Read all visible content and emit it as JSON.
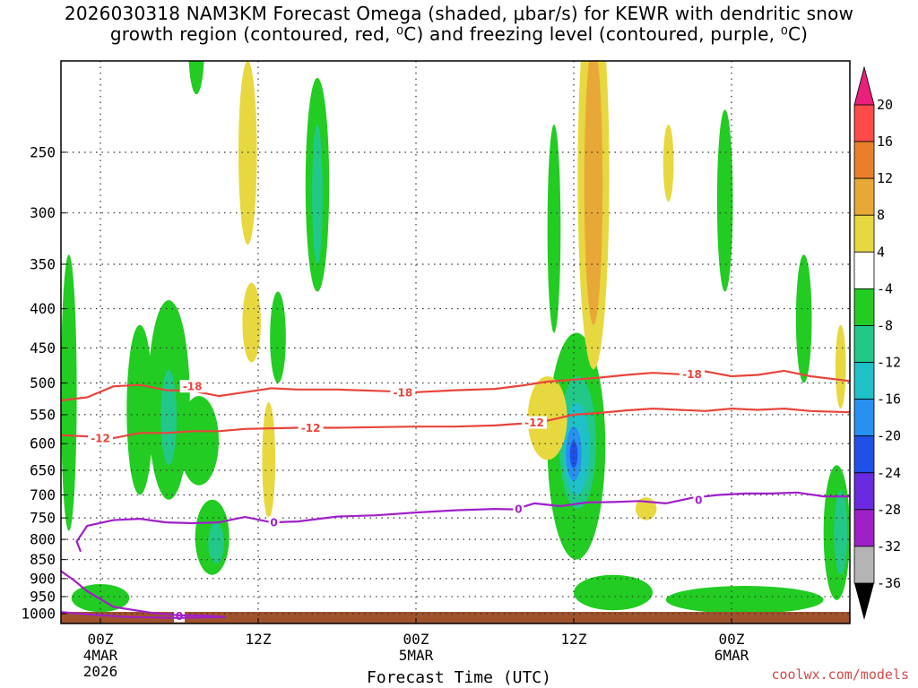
{
  "title": {
    "line1": "2026030318 NAM3KM Forecast Omega (shaded, μbar/s) for KEWR with dendritic snow",
    "line2": "growth region (contoured, red, ⁰C) and freezing level (contoured, purple, ⁰C)"
  },
  "credit": "coolwx.com/models",
  "chart_data": {
    "type": "heatmap",
    "title": "2026030318 NAM3KM Forecast Omega (shaded, μbar/s) for KEWR with dendritic snow growth region (contoured, red, ⁰C) and freezing level (contoured, purple, ⁰C)",
    "xlabel": "Forecast Time (UTC)",
    "ylabel": "",
    "x_unit": "forecast hour",
    "xlim": [
      3,
      63
    ],
    "ylim": [
      1030,
      190
    ],
    "y_axis": "pressure (hPa)",
    "y_ticks": [
      250,
      300,
      350,
      400,
      450,
      500,
      550,
      600,
      650,
      700,
      750,
      800,
      850,
      900,
      950,
      1000
    ],
    "x_ticks": [
      {
        "hour": 6,
        "label": "00Z",
        "sub1": "4MAR",
        "sub2": "2026"
      },
      {
        "hour": 18,
        "label": "12Z",
        "sub1": "",
        "sub2": ""
      },
      {
        "hour": 30,
        "label": "00Z",
        "sub1": "5MAR",
        "sub2": ""
      },
      {
        "hour": 42,
        "label": "12Z",
        "sub1": "",
        "sub2": ""
      },
      {
        "hour": 54,
        "label": "00Z",
        "sub1": "6MAR",
        "sub2": ""
      }
    ],
    "colorbar": {
      "levels": [
        20,
        16,
        12,
        8,
        4,
        -4,
        -8,
        -12,
        -16,
        -20,
        -24,
        -28,
        -32,
        -36
      ],
      "colors": [
        "#ff4a4a",
        "#e8802a",
        "#e8a838",
        "#e8d840",
        "#ffffff",
        "#22cc22",
        "#22c888",
        "#20c0c8",
        "#2890f0",
        "#2050e8",
        "#6a2ae0",
        "#a020c8",
        "#b4b4b4"
      ],
      "top_arrow_color": "#e8207a",
      "bottom_arrow_color": "#000000"
    },
    "contours": [
      {
        "name": "dendritic -18C",
        "label": "-18",
        "color": "#e8453c",
        "points": [
          [
            3,
            527
          ],
          [
            5,
            522
          ],
          [
            7,
            505
          ],
          [
            9,
            503
          ],
          [
            11,
            511
          ],
          [
            13,
            512
          ],
          [
            15,
            520
          ],
          [
            17,
            514
          ],
          [
            19,
            508
          ],
          [
            21,
            510
          ],
          [
            24,
            510
          ],
          [
            27,
            512
          ],
          [
            30,
            514
          ],
          [
            33,
            511
          ],
          [
            36,
            509
          ],
          [
            38,
            504
          ],
          [
            40,
            498
          ],
          [
            42,
            495
          ],
          [
            44,
            492
          ],
          [
            46,
            488
          ],
          [
            48,
            485
          ],
          [
            50,
            487
          ],
          [
            52,
            483
          ],
          [
            54,
            490
          ],
          [
            56,
            488
          ],
          [
            58,
            482
          ],
          [
            60,
            490
          ],
          [
            63,
            497
          ]
        ],
        "label_positions": [
          [
            13,
            505
          ],
          [
            29,
            514
          ],
          [
            51,
            487
          ]
        ]
      },
      {
        "name": "dendritic -12C",
        "label": "-12",
        "color": "#e8453c",
        "points": [
          [
            3,
            585
          ],
          [
            5,
            587
          ],
          [
            7,
            590
          ],
          [
            9,
            581
          ],
          [
            11,
            581
          ],
          [
            13,
            578
          ],
          [
            15,
            578
          ],
          [
            17,
            574
          ],
          [
            19,
            573
          ],
          [
            21,
            572
          ],
          [
            24,
            572
          ],
          [
            27,
            571
          ],
          [
            30,
            570
          ],
          [
            33,
            570
          ],
          [
            36,
            568
          ],
          [
            38,
            565
          ],
          [
            40,
            560
          ],
          [
            42,
            550
          ],
          [
            44,
            547
          ],
          [
            46,
            543
          ],
          [
            48,
            540
          ],
          [
            50,
            542
          ],
          [
            52,
            544
          ],
          [
            54,
            540
          ],
          [
            56,
            542
          ],
          [
            58,
            540
          ],
          [
            60,
            544
          ],
          [
            63,
            546
          ]
        ],
        "label_positions": [
          [
            6,
            590
          ],
          [
            22,
            572
          ],
          [
            39,
            563
          ]
        ]
      },
      {
        "name": "freezing level 0C",
        "label": "0",
        "color": "#a020c8",
        "points": [
          [
            4.5,
            830
          ],
          [
            4.2,
            805
          ],
          [
            5,
            768
          ],
          [
            7,
            755
          ],
          [
            9,
            752
          ],
          [
            11,
            760
          ],
          [
            13,
            762
          ],
          [
            15,
            760
          ],
          [
            17,
            748
          ],
          [
            19,
            760
          ],
          [
            21,
            758
          ],
          [
            24,
            747
          ],
          [
            27,
            744
          ],
          [
            30,
            738
          ],
          [
            33,
            733
          ],
          [
            36,
            730
          ],
          [
            37.5,
            731
          ],
          [
            39,
            718
          ],
          [
            41,
            724
          ],
          [
            43,
            716
          ],
          [
            45,
            715
          ],
          [
            47,
            713
          ],
          [
            49,
            718
          ],
          [
            51,
            706
          ],
          [
            53,
            700
          ],
          [
            55,
            697
          ],
          [
            57,
            697
          ],
          [
            59,
            695
          ],
          [
            61,
            703
          ],
          [
            63,
            703
          ]
        ],
        "label_positions": [
          [
            19.2,
            760
          ],
          [
            37.8,
            730
          ],
          [
            51.5,
            710
          ],
          [
            12,
            1007
          ]
        ]
      },
      {
        "name": "freezing level 0C low",
        "label": "0",
        "color": "#a020c8",
        "points": [
          [
            3,
            880
          ],
          [
            4,
            905
          ],
          [
            5,
            935
          ],
          [
            7,
            980
          ],
          [
            10,
            998
          ],
          [
            12,
            1005
          ],
          [
            14,
            1006
          ],
          [
            15.5,
            1010
          ],
          [
            12,
            1013
          ],
          [
            8,
            1010
          ],
          [
            5,
            1002
          ],
          [
            3,
            995
          ]
        ],
        "label_positions": []
      }
    ],
    "shaded_regions": [
      {
        "level": -4,
        "color": "#22cc22",
        "center": [
          3.6,
          560
        ],
        "radius": [
          0.6,
          220
        ]
      },
      {
        "level": -4,
        "color": "#22cc22",
        "center": [
          9,
          560
        ],
        "radius": [
          1.0,
          140
        ]
      },
      {
        "level": -4,
        "color": "#22cc22",
        "center": [
          11.2,
          550
        ],
        "radius": [
          1.6,
          160
        ]
      },
      {
        "level": -8,
        "color": "#22c888",
        "center": [
          11.2,
          560
        ],
        "radius": [
          0.6,
          80
        ]
      },
      {
        "level": -4,
        "color": "#22cc22",
        "center": [
          13.5,
          600
        ],
        "radius": [
          1.5,
          80
        ]
      },
      {
        "level": -4,
        "color": "#22cc22",
        "center": [
          14.5,
          800
        ],
        "radius": [
          1.3,
          90
        ]
      },
      {
        "level": -8,
        "color": "#22c888",
        "center": [
          14.8,
          810
        ],
        "radius": [
          0.6,
          50
        ]
      },
      {
        "level": -4,
        "color": "#22cc22",
        "center": [
          6,
          955
        ],
        "radius": [
          2.2,
          40
        ]
      },
      {
        "level": -4,
        "color": "#22cc22",
        "center": [
          19.5,
          440
        ],
        "radius": [
          0.6,
          60
        ]
      },
      {
        "level": -4,
        "color": "#22cc22",
        "center": [
          13.3,
          185
        ],
        "radius": [
          0.6,
          25
        ]
      },
      {
        "level": -4,
        "color": "#22cc22",
        "center": [
          22.5,
          290
        ],
        "radius": [
          0.9,
          90
        ]
      },
      {
        "level": -8,
        "color": "#22c888",
        "center": [
          22.5,
          290
        ],
        "radius": [
          0.4,
          60
        ]
      },
      {
        "level": -4,
        "color": "#22cc22",
        "center": [
          42.2,
          640
        ],
        "radius": [
          2.2,
          210
        ]
      },
      {
        "level": -4,
        "color": "#22cc22",
        "center": [
          40.5,
          330
        ],
        "radius": [
          0.5,
          100
        ]
      },
      {
        "level": -8,
        "color": "#22c888",
        "center": [
          42.3,
          610
        ],
        "radius": [
          1.4,
          120
        ]
      },
      {
        "level": -12,
        "color": "#20c0c8",
        "center": [
          42.2,
          615
        ],
        "radius": [
          1.0,
          85
        ]
      },
      {
        "level": -16,
        "color": "#2890f0",
        "center": [
          42.0,
          620
        ],
        "radius": [
          0.6,
          50
        ]
      },
      {
        "level": -20,
        "color": "#2050e8",
        "center": [
          42.0,
          620
        ],
        "radius": [
          0.3,
          25
        ]
      },
      {
        "level": -4,
        "color": "#22cc22",
        "center": [
          45,
          940
        ],
        "radius": [
          3.0,
          50
        ]
      },
      {
        "level": -4,
        "color": "#22cc22",
        "center": [
          55,
          960
        ],
        "radius": [
          6.0,
          40
        ]
      },
      {
        "level": -4,
        "color": "#22cc22",
        "center": [
          62,
          800
        ],
        "radius": [
          1.0,
          160
        ]
      },
      {
        "level": -8,
        "color": "#22c888",
        "center": [
          62.3,
          790
        ],
        "radius": [
          0.5,
          100
        ]
      },
      {
        "level": -4,
        "color": "#22cc22",
        "center": [
          53.5,
          300
        ],
        "radius": [
          0.6,
          80
        ]
      },
      {
        "level": -4,
        "color": "#22cc22",
        "center": [
          59.5,
          420
        ],
        "radius": [
          0.6,
          80
        ]
      },
      {
        "level": 4,
        "color": "#e8d840",
        "center": [
          17.2,
          260
        ],
        "radius": [
          0.7,
          70
        ]
      },
      {
        "level": 4,
        "color": "#e8d840",
        "center": [
          17.5,
          420
        ],
        "radius": [
          0.7,
          50
        ]
      },
      {
        "level": 4,
        "color": "#e8d840",
        "center": [
          18.8,
          640
        ],
        "radius": [
          0.5,
          110
        ]
      },
      {
        "level": 4,
        "color": "#e8d840",
        "center": [
          43.5,
          300
        ],
        "radius": [
          1.2,
          180
        ]
      },
      {
        "level": 8,
        "color": "#e8a838",
        "center": [
          43.5,
          300
        ],
        "radius": [
          0.7,
          120
        ]
      },
      {
        "level": 4,
        "color": "#e8d840",
        "center": [
          40,
          560
        ],
        "radius": [
          1.5,
          70
        ]
      },
      {
        "level": 4,
        "color": "#e8d840",
        "center": [
          47.5,
          730
        ],
        "radius": [
          0.8,
          25
        ]
      },
      {
        "level": 4,
        "color": "#e8d840",
        "center": [
          49.2,
          260
        ],
        "radius": [
          0.4,
          30
        ]
      },
      {
        "level": 4,
        "color": "#e8d840",
        "center": [
          62.3,
          480
        ],
        "radius": [
          0.4,
          60
        ]
      }
    ]
  },
  "colors": {
    "surface": "#a0522d",
    "grid": "#333333"
  }
}
